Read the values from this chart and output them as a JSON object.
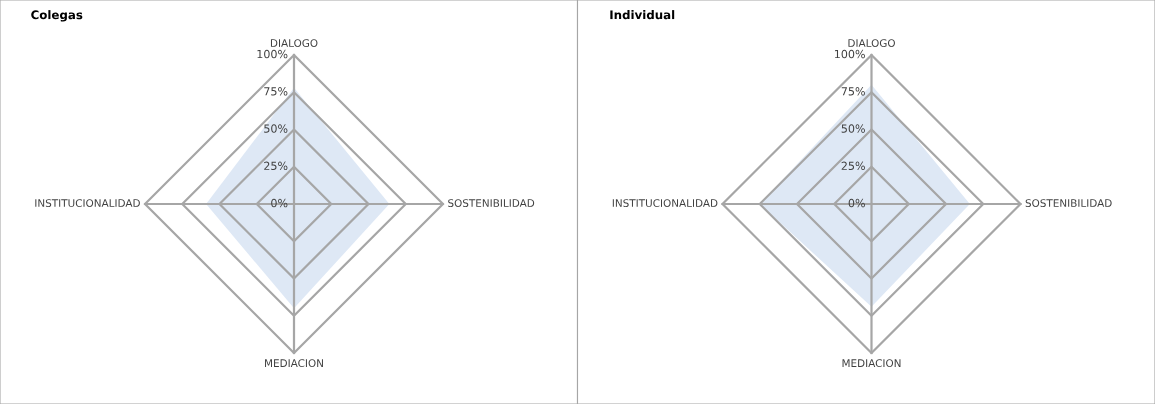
{
  "chart_data": [
    {
      "type": "radar",
      "title": "Colegas",
      "categories": [
        "DIALOGO",
        "SOSTENIBILIDAD",
        "MEDIACION",
        "INSTITUCIONALIDAD"
      ],
      "ylim": [
        0,
        1
      ],
      "yticks": [
        {
          "value": 0,
          "label": "0%"
        },
        {
          "value": 0.25,
          "label": "25%"
        },
        {
          "value": 0.5,
          "label": "50%"
        },
        {
          "value": 0.75,
          "label": "75%"
        },
        {
          "value": 1,
          "label": "100%"
        }
      ],
      "grid": true,
      "series": [
        {
          "type": "area",
          "color": "#dee8f5",
          "values": [
            0.78,
            0.64,
            0.7,
            0.59
          ]
        }
      ]
    },
    {
      "type": "radar",
      "title": "Individual",
      "categories": [
        "DIALOGO",
        "SOSTENIBILIDAD",
        "MEDIACION",
        "INSTITUCIONALIDAD"
      ],
      "ylim": [
        0,
        1
      ],
      "yticks": [
        {
          "value": 0,
          "label": "0%"
        },
        {
          "value": 0.25,
          "label": "25%"
        },
        {
          "value": 0.5,
          "label": "50%"
        },
        {
          "value": 0.75,
          "label": "75%"
        },
        {
          "value": 1,
          "label": "100%"
        }
      ],
      "grid": true,
      "series": [
        {
          "type": "area",
          "color": "#dee8f5",
          "values": [
            0.8,
            0.66,
            0.69,
            0.75
          ]
        }
      ]
    }
  ]
}
